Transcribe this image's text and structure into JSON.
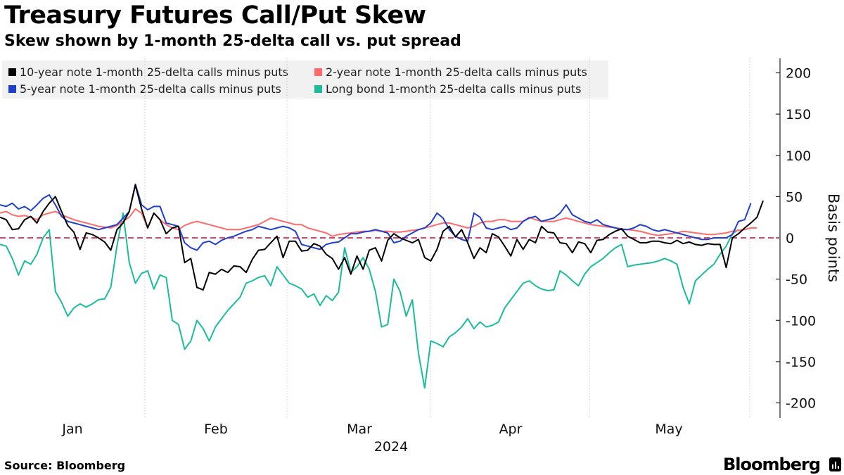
{
  "chart_data": {
    "type": "line",
    "title": "Treasury Futures Call/Put Skew",
    "subtitle": "Skew shown by 1-month 25-delta call vs. put spread",
    "ylabel": "Basis points",
    "ylim": [
      -220,
      215
    ],
    "y_ticks": [
      200,
      150,
      100,
      50,
      0,
      -50,
      -100,
      -150,
      -200
    ],
    "x_ticks": [
      "Jan",
      "Feb",
      "Mar",
      "Apr",
      "May"
    ],
    "x_year_label": "2024",
    "zero_line": true,
    "grid": "vertical dotted",
    "legend_position": "top-left",
    "source": "Source: Bloomberg",
    "brand": "Bloomberg",
    "series": [
      {
        "name": "10-year note 1-month 25-delta calls minus puts",
        "color": "#000000",
        "values": [
          25,
          22,
          10,
          11,
          22,
          26,
          18,
          32,
          42,
          50,
          32,
          15,
          7,
          -14,
          6,
          4,
          0,
          -5,
          -15,
          10,
          18,
          32,
          64,
          35,
          12,
          30,
          22,
          5,
          12,
          14,
          -30,
          -25,
          -60,
          -63,
          -42,
          -44,
          -38,
          -42,
          -34,
          -35,
          -42,
          -26,
          -15,
          -14,
          -6,
          2,
          -24,
          -4,
          -4,
          -16,
          -15,
          -7,
          -10,
          -20,
          -25,
          -38,
          -24,
          -44,
          -22,
          -38,
          -15,
          -12,
          -28,
          -3,
          5,
          0,
          -3,
          -6,
          -2,
          -24,
          -28,
          -14,
          8,
          14,
          1,
          10,
          -6,
          -25,
          -12,
          -18,
          5,
          1,
          -10,
          -22,
          -2,
          -14,
          -2,
          -6,
          14,
          7,
          6,
          -6,
          -7,
          -18,
          -5,
          -7,
          -18,
          -3,
          -2,
          4,
          8,
          11,
          2,
          -2,
          -6,
          -6,
          -4,
          -4,
          -6,
          -7,
          -3,
          -7,
          -5,
          -8,
          -9,
          -7,
          -8,
          -8,
          -36,
          0,
          5,
          12,
          18,
          25,
          45
        ]
      },
      {
        "name": "2-year note 1-month 25-delta calls minus puts",
        "color": "#ff6b6b",
        "values": [
          30,
          32,
          28,
          26,
          27,
          25,
          22,
          28,
          30,
          32,
          28,
          25,
          22,
          20,
          18,
          16,
          14,
          13,
          12,
          15,
          20,
          25,
          35,
          30,
          12,
          30,
          22,
          16,
          12,
          10,
          15,
          18,
          20,
          18,
          16,
          14,
          12,
          10,
          10,
          10,
          12,
          14,
          16,
          20,
          24,
          22,
          20,
          18,
          16,
          16,
          12,
          10,
          8,
          6,
          2,
          4,
          5,
          6,
          7,
          8,
          8,
          9,
          8,
          8,
          7,
          7,
          8,
          9,
          10,
          12,
          14,
          16,
          18,
          18,
          16,
          14,
          12,
          14,
          18,
          20,
          20,
          22,
          22,
          20,
          20,
          20,
          25,
          22,
          20,
          20,
          20,
          22,
          24,
          22,
          20,
          18,
          16,
          15,
          14,
          13,
          12,
          11,
          10,
          9,
          8,
          6,
          4,
          3,
          4,
          5,
          6,
          8,
          7,
          6,
          5,
          4,
          4,
          5,
          6,
          8,
          9,
          10,
          12,
          12
        ]
      },
      {
        "name": "5-year note 1-month 25-delta calls minus puts",
        "color": "#1f3fce",
        "values": [
          40,
          38,
          42,
          35,
          38,
          33,
          40,
          48,
          52,
          40,
          26,
          20,
          18,
          16,
          14,
          12,
          10,
          12,
          14,
          16,
          24,
          32,
          65,
          40,
          34,
          38,
          38,
          18,
          16,
          14,
          -6,
          -12,
          -15,
          -6,
          -4,
          -8,
          -3,
          0,
          2,
          5,
          8,
          10,
          14,
          12,
          10,
          12,
          14,
          12,
          8,
          -8,
          -10,
          -12,
          -14,
          -8,
          -6,
          -5,
          0,
          5,
          5,
          7,
          8,
          10,
          8,
          6,
          -6,
          -4,
          2,
          6,
          10,
          12,
          18,
          30,
          24,
          10,
          2,
          -2,
          -4,
          30,
          25,
          12,
          10,
          12,
          14,
          10,
          12,
          20,
          24,
          26,
          20,
          22,
          24,
          30,
          40,
          28,
          24,
          20,
          18,
          22,
          16,
          14,
          12,
          10,
          10,
          12,
          16,
          14,
          10,
          8,
          10,
          8,
          6,
          4,
          2,
          0,
          -2,
          -2,
          0,
          0,
          0,
          4,
          20,
          22,
          42
        ]
      },
      {
        "name": "Long bond 1-month 25-delta calls minus puts",
        "color": "#1abc9c",
        "values": [
          -8,
          -10,
          -25,
          -45,
          -28,
          -32,
          -20,
          0,
          10,
          -65,
          -78,
          -95,
          -85,
          -80,
          -84,
          -80,
          -75,
          -74,
          -60,
          -10,
          30,
          -30,
          -55,
          -43,
          -40,
          -62,
          -45,
          -48,
          -100,
          -105,
          -135,
          -125,
          -100,
          -110,
          -125,
          -108,
          -98,
          -88,
          -80,
          -72,
          -55,
          -52,
          -48,
          -46,
          -58,
          -35,
          -45,
          -55,
          -58,
          -62,
          -72,
          -68,
          -82,
          -70,
          -76,
          -66,
          -12,
          -42,
          -35,
          -24,
          -38,
          -65,
          -108,
          -105,
          -50,
          -65,
          -95,
          -75,
          -140,
          -182,
          -125,
          -128,
          -132,
          -120,
          -115,
          -108,
          -98,
          -110,
          -102,
          -108,
          -106,
          -102,
          -85,
          -75,
          -65,
          -55,
          -52,
          -58,
          -62,
          -64,
          -63,
          -40,
          -45,
          -52,
          -58,
          -44,
          -35,
          -30,
          -25,
          -18,
          -12,
          -8,
          -35,
          -33,
          -32,
          -31,
          -30,
          -28,
          -25,
          -28,
          -32,
          -60,
          -80,
          -52,
          -45,
          -38,
          -32,
          -20,
          -10,
          5,
          10
        ]
      }
    ]
  }
}
